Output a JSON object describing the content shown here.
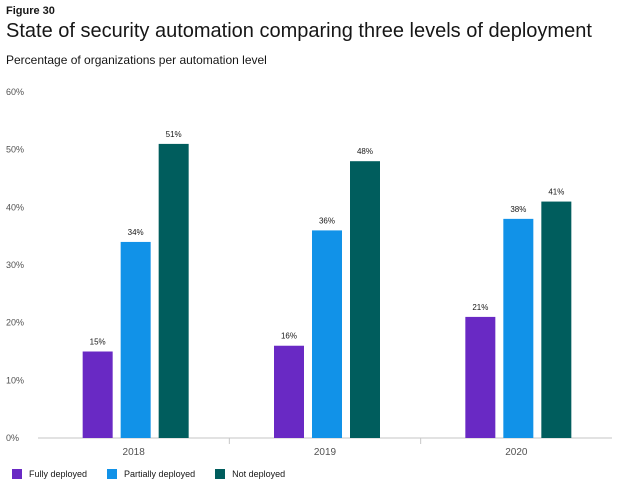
{
  "figure_label": "Figure 30",
  "chart_data": {
    "type": "bar",
    "title": "State of security automation comparing three levels of deployment",
    "subtitle": "Percentage of organizations per automation level",
    "categories": [
      "2018",
      "2019",
      "2020"
    ],
    "series": [
      {
        "name": "Fully deployed",
        "color": "#6929c4",
        "values": [
          15,
          16,
          21
        ]
      },
      {
        "name": "Partially deployed",
        "color": "#1192e8",
        "values": [
          34,
          36,
          38
        ]
      },
      {
        "name": "Not deployed",
        "color": "#005d5d",
        "values": [
          51,
          48,
          41
        ]
      }
    ],
    "value_suffix": "%",
    "ylim": [
      0,
      60
    ],
    "yticks": [
      "0%",
      "10%",
      "20%",
      "30%",
      "40%",
      "50%",
      "60%"
    ],
    "grid": false,
    "legend_position": "bottom-left"
  }
}
